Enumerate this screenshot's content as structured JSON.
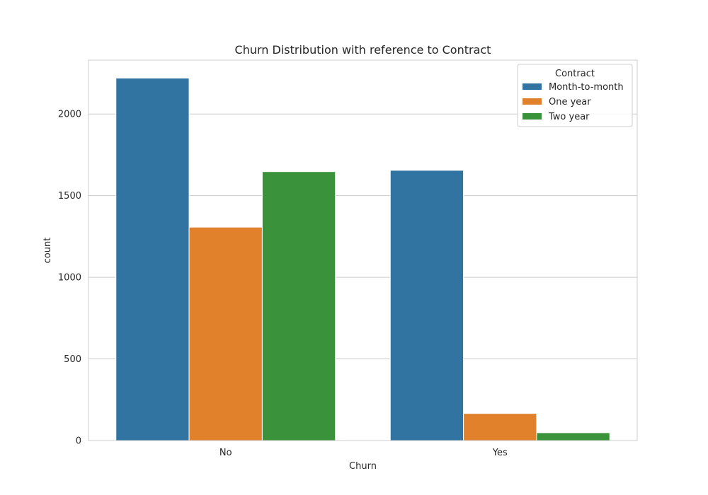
{
  "chart_data": {
    "type": "bar",
    "title": "Churn Distribution with reference to Contract",
    "xlabel": "Churn",
    "ylabel": "count",
    "categories": [
      "No",
      "Yes"
    ],
    "series": [
      {
        "name": "Month-to-month",
        "values": [
          2220,
          1655
        ],
        "color": "#3274a1"
      },
      {
        "name": "One year",
        "values": [
          1307,
          166
        ],
        "color": "#e1812c"
      },
      {
        "name": "Two year",
        "values": [
          1647,
          48
        ],
        "color": "#3a923a"
      }
    ],
    "ylim": [
      0,
      2330
    ],
    "yticks": [
      0,
      500,
      1000,
      1500,
      2000
    ],
    "grid": true,
    "legend": {
      "title": "Contract",
      "position": "top-right"
    }
  }
}
